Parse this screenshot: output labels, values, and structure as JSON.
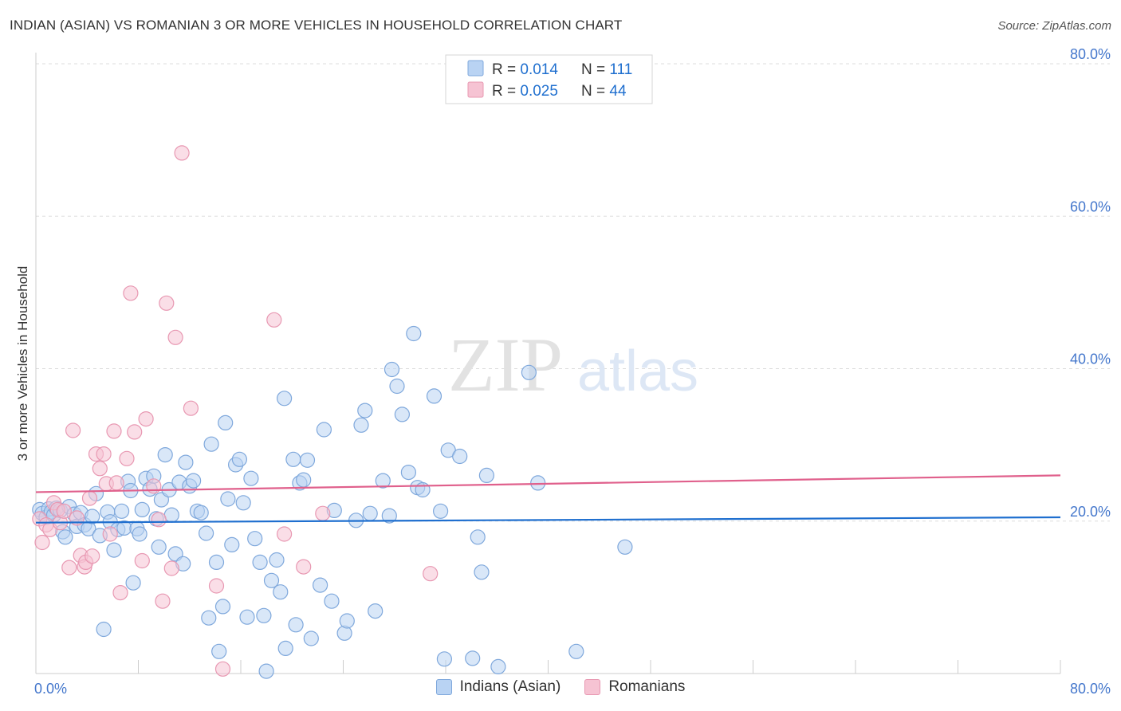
{
  "title": "INDIAN (ASIAN) VS ROMANIAN 3 OR MORE VEHICLES IN HOUSEHOLD CORRELATION CHART",
  "source": "Source: ZipAtlas.com",
  "watermark": {
    "zip": "ZIP",
    "atlas": "atlas"
  },
  "colors": {
    "blue_fill": "#b9d3f3",
    "blue_stroke": "#7fa8dc",
    "blue_line": "#1f6fcf",
    "pink_fill": "#f6c3d3",
    "pink_stroke": "#e898b2",
    "pink_line": "#e0608c",
    "axis_text": "#4477cc",
    "grid": "#dddddd"
  },
  "legend_top": {
    "rows": [
      {
        "r_label": "R = ",
        "r_value": "0.014",
        "n_label": "N = ",
        "n_value": "111"
      },
      {
        "r_label": "R = ",
        "r_value": "0.025",
        "n_label": "N = ",
        "n_value": "44"
      }
    ]
  },
  "legend_bottom": [
    "Indians (Asian)",
    "Romanians"
  ],
  "chart_data": {
    "type": "scatter",
    "title": "INDIAN (ASIAN) VS ROMANIAN 3 OR MORE VEHICLES IN HOUSEHOLD CORRELATION CHART",
    "xlabel": "",
    "ylabel": "3 or more Vehicles in Household",
    "xlim": [
      0,
      80
    ],
    "ylim": [
      0,
      80
    ],
    "x_tick_labels": [
      "0.0%",
      "80.0%"
    ],
    "y_ticks": [
      20,
      40,
      60,
      80
    ],
    "y_tick_labels": [
      "20.0%",
      "40.0%",
      "60.0%",
      "80.0%"
    ],
    "grid": "horizontal dashed",
    "legend_position": "top-center",
    "series": [
      {
        "name": "Indians (Asian)",
        "R": 0.014,
        "N": 111,
        "trend": {
          "x": [
            0,
            80
          ],
          "y": [
            19.8,
            20.5
          ]
        },
        "points": [
          [
            0.3,
            21.5
          ],
          [
            0.5,
            21.0
          ],
          [
            0.8,
            20.5
          ],
          [
            1.0,
            21.6
          ],
          [
            1.2,
            21.2
          ],
          [
            1.4,
            20.8
          ],
          [
            1.6,
            21.7
          ],
          [
            1.9,
            21.4
          ],
          [
            2.1,
            18.6
          ],
          [
            2.3,
            17.9
          ],
          [
            2.6,
            21.9
          ],
          [
            3.0,
            20.9
          ],
          [
            3.2,
            19.3
          ],
          [
            3.5,
            21.1
          ],
          [
            3.8,
            19.5
          ],
          [
            4.1,
            19.0
          ],
          [
            4.4,
            20.6
          ],
          [
            4.7,
            23.6
          ],
          [
            5.0,
            18.1
          ],
          [
            5.3,
            5.8
          ],
          [
            5.6,
            21.2
          ],
          [
            5.8,
            19.9
          ],
          [
            6.1,
            16.2
          ],
          [
            6.4,
            18.9
          ],
          [
            6.7,
            21.3
          ],
          [
            6.9,
            19.1
          ],
          [
            7.2,
            25.2
          ],
          [
            7.4,
            24.0
          ],
          [
            7.6,
            11.9
          ],
          [
            7.9,
            19.0
          ],
          [
            8.1,
            18.3
          ],
          [
            8.3,
            21.5
          ],
          [
            8.6,
            25.6
          ],
          [
            8.9,
            24.2
          ],
          [
            9.2,
            25.9
          ],
          [
            9.4,
            20.3
          ],
          [
            9.6,
            16.6
          ],
          [
            9.8,
            22.8
          ],
          [
            10.1,
            28.7
          ],
          [
            10.4,
            24.1
          ],
          [
            10.6,
            20.8
          ],
          [
            10.9,
            15.7
          ],
          [
            11.2,
            25.1
          ],
          [
            11.5,
            14.4
          ],
          [
            11.7,
            27.7
          ],
          [
            12.0,
            24.6
          ],
          [
            12.3,
            25.3
          ],
          [
            12.6,
            21.3
          ],
          [
            12.9,
            21.1
          ],
          [
            13.3,
            18.4
          ],
          [
            13.5,
            7.3
          ],
          [
            13.7,
            30.1
          ],
          [
            14.1,
            14.6
          ],
          [
            14.3,
            2.9
          ],
          [
            14.6,
            8.8
          ],
          [
            14.8,
            32.9
          ],
          [
            15.0,
            22.9
          ],
          [
            15.3,
            16.9
          ],
          [
            15.6,
            27.4
          ],
          [
            15.9,
            28.1
          ],
          [
            16.2,
            22.4
          ],
          [
            16.5,
            7.4
          ],
          [
            16.8,
            25.6
          ],
          [
            17.1,
            17.7
          ],
          [
            17.5,
            14.6
          ],
          [
            17.8,
            7.6
          ],
          [
            18.0,
            0.3
          ],
          [
            18.4,
            12.2
          ],
          [
            18.8,
            14.9
          ],
          [
            19.1,
            10.7
          ],
          [
            19.4,
            36.1
          ],
          [
            19.5,
            3.3
          ],
          [
            20.1,
            28.1
          ],
          [
            20.3,
            6.4
          ],
          [
            20.6,
            25.0
          ],
          [
            20.9,
            25.4
          ],
          [
            21.2,
            28.0
          ],
          [
            21.5,
            4.6
          ],
          [
            22.2,
            11.6
          ],
          [
            22.5,
            32.0
          ],
          [
            23.1,
            9.5
          ],
          [
            23.3,
            21.4
          ],
          [
            24.1,
            5.3
          ],
          [
            24.3,
            6.9
          ],
          [
            25.0,
            20.1
          ],
          [
            25.4,
            32.6
          ],
          [
            25.7,
            34.5
          ],
          [
            26.1,
            21.0
          ],
          [
            26.5,
            8.2
          ],
          [
            27.1,
            25.3
          ],
          [
            27.6,
            20.7
          ],
          [
            27.8,
            39.9
          ],
          [
            28.2,
            37.7
          ],
          [
            28.6,
            34.0
          ],
          [
            29.1,
            26.4
          ],
          [
            29.5,
            44.6
          ],
          [
            29.8,
            24.4
          ],
          [
            30.2,
            24.1
          ],
          [
            31.1,
            36.4
          ],
          [
            31.6,
            21.3
          ],
          [
            31.9,
            1.9
          ],
          [
            32.2,
            29.3
          ],
          [
            33.1,
            28.5
          ],
          [
            34.1,
            2.0
          ],
          [
            34.5,
            17.9
          ],
          [
            34.8,
            13.3
          ],
          [
            35.2,
            26.0
          ],
          [
            36.1,
            0.9
          ],
          [
            38.5,
            39.5
          ],
          [
            39.2,
            25.0
          ],
          [
            42.2,
            2.9
          ],
          [
            46.0,
            16.6
          ]
        ]
      },
      {
        "name": "Romanians",
        "R": 0.025,
        "N": 44,
        "trend": {
          "x": [
            0,
            80
          ],
          "y": [
            23.8,
            26.0
          ]
        },
        "points": [
          [
            0.3,
            20.3
          ],
          [
            0.5,
            17.2
          ],
          [
            0.8,
            19.5
          ],
          [
            1.1,
            18.9
          ],
          [
            1.4,
            22.4
          ],
          [
            1.7,
            21.5
          ],
          [
            1.9,
            19.8
          ],
          [
            2.2,
            21.3
          ],
          [
            2.6,
            13.9
          ],
          [
            2.9,
            31.9
          ],
          [
            3.2,
            20.4
          ],
          [
            3.5,
            15.5
          ],
          [
            3.8,
            14.0
          ],
          [
            3.9,
            14.6
          ],
          [
            4.2,
            23.0
          ],
          [
            4.4,
            15.4
          ],
          [
            4.7,
            28.8
          ],
          [
            5.0,
            26.9
          ],
          [
            5.3,
            28.8
          ],
          [
            5.5,
            24.9
          ],
          [
            5.8,
            18.3
          ],
          [
            6.1,
            31.8
          ],
          [
            6.3,
            25.0
          ],
          [
            6.6,
            10.6
          ],
          [
            7.1,
            28.2
          ],
          [
            7.4,
            49.9
          ],
          [
            7.7,
            31.7
          ],
          [
            8.3,
            14.8
          ],
          [
            8.6,
            33.4
          ],
          [
            9.2,
            24.6
          ],
          [
            9.6,
            20.2
          ],
          [
            9.9,
            9.5
          ],
          [
            10.2,
            48.6
          ],
          [
            10.6,
            13.8
          ],
          [
            10.9,
            44.1
          ],
          [
            11.4,
            68.3
          ],
          [
            12.1,
            34.8
          ],
          [
            14.1,
            11.5
          ],
          [
            14.6,
            0.6
          ],
          [
            18.6,
            46.4
          ],
          [
            19.4,
            18.3
          ],
          [
            30.8,
            13.1
          ],
          [
            20.9,
            14.0
          ],
          [
            22.4,
            21.0
          ]
        ]
      }
    ]
  }
}
